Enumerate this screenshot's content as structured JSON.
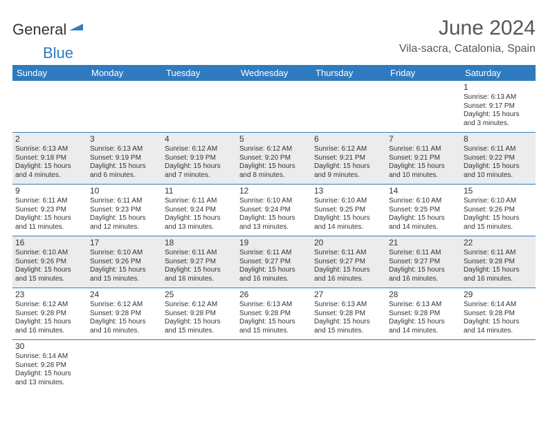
{
  "brand": {
    "part1": "General",
    "part2": "Blue"
  },
  "title": "June 2024",
  "location": "Vila-sacra, Catalonia, Spain",
  "colors": {
    "header_bg": "#2f7bbf",
    "header_fg": "#ffffff",
    "shade_bg": "#ececec",
    "rule": "#2f7bbf",
    "text": "#333333",
    "title_color": "#555555"
  },
  "day_headers": [
    "Sunday",
    "Monday",
    "Tuesday",
    "Wednesday",
    "Thursday",
    "Friday",
    "Saturday"
  ],
  "weeks": [
    [
      null,
      null,
      null,
      null,
      null,
      null,
      {
        "n": "1",
        "sr": "Sunrise: 6:13 AM",
        "ss": "Sunset: 9:17 PM",
        "d1": "Daylight: 15 hours",
        "d2": "and 3 minutes."
      }
    ],
    [
      {
        "n": "2",
        "sr": "Sunrise: 6:13 AM",
        "ss": "Sunset: 9:18 PM",
        "d1": "Daylight: 15 hours",
        "d2": "and 4 minutes."
      },
      {
        "n": "3",
        "sr": "Sunrise: 6:13 AM",
        "ss": "Sunset: 9:19 PM",
        "d1": "Daylight: 15 hours",
        "d2": "and 6 minutes."
      },
      {
        "n": "4",
        "sr": "Sunrise: 6:12 AM",
        "ss": "Sunset: 9:19 PM",
        "d1": "Daylight: 15 hours",
        "d2": "and 7 minutes."
      },
      {
        "n": "5",
        "sr": "Sunrise: 6:12 AM",
        "ss": "Sunset: 9:20 PM",
        "d1": "Daylight: 15 hours",
        "d2": "and 8 minutes."
      },
      {
        "n": "6",
        "sr": "Sunrise: 6:12 AM",
        "ss": "Sunset: 9:21 PM",
        "d1": "Daylight: 15 hours",
        "d2": "and 9 minutes."
      },
      {
        "n": "7",
        "sr": "Sunrise: 6:11 AM",
        "ss": "Sunset: 9:21 PM",
        "d1": "Daylight: 15 hours",
        "d2": "and 10 minutes."
      },
      {
        "n": "8",
        "sr": "Sunrise: 6:11 AM",
        "ss": "Sunset: 9:22 PM",
        "d1": "Daylight: 15 hours",
        "d2": "and 10 minutes."
      }
    ],
    [
      {
        "n": "9",
        "sr": "Sunrise: 6:11 AM",
        "ss": "Sunset: 9:23 PM",
        "d1": "Daylight: 15 hours",
        "d2": "and 11 minutes."
      },
      {
        "n": "10",
        "sr": "Sunrise: 6:11 AM",
        "ss": "Sunset: 9:23 PM",
        "d1": "Daylight: 15 hours",
        "d2": "and 12 minutes."
      },
      {
        "n": "11",
        "sr": "Sunrise: 6:11 AM",
        "ss": "Sunset: 9:24 PM",
        "d1": "Daylight: 15 hours",
        "d2": "and 13 minutes."
      },
      {
        "n": "12",
        "sr": "Sunrise: 6:10 AM",
        "ss": "Sunset: 9:24 PM",
        "d1": "Daylight: 15 hours",
        "d2": "and 13 minutes."
      },
      {
        "n": "13",
        "sr": "Sunrise: 6:10 AM",
        "ss": "Sunset: 9:25 PM",
        "d1": "Daylight: 15 hours",
        "d2": "and 14 minutes."
      },
      {
        "n": "14",
        "sr": "Sunrise: 6:10 AM",
        "ss": "Sunset: 9:25 PM",
        "d1": "Daylight: 15 hours",
        "d2": "and 14 minutes."
      },
      {
        "n": "15",
        "sr": "Sunrise: 6:10 AM",
        "ss": "Sunset: 9:26 PM",
        "d1": "Daylight: 15 hours",
        "d2": "and 15 minutes."
      }
    ],
    [
      {
        "n": "16",
        "sr": "Sunrise: 6:10 AM",
        "ss": "Sunset: 9:26 PM",
        "d1": "Daylight: 15 hours",
        "d2": "and 15 minutes."
      },
      {
        "n": "17",
        "sr": "Sunrise: 6:10 AM",
        "ss": "Sunset: 9:26 PM",
        "d1": "Daylight: 15 hours",
        "d2": "and 15 minutes."
      },
      {
        "n": "18",
        "sr": "Sunrise: 6:11 AM",
        "ss": "Sunset: 9:27 PM",
        "d1": "Daylight: 15 hours",
        "d2": "and 16 minutes."
      },
      {
        "n": "19",
        "sr": "Sunrise: 6:11 AM",
        "ss": "Sunset: 9:27 PM",
        "d1": "Daylight: 15 hours",
        "d2": "and 16 minutes."
      },
      {
        "n": "20",
        "sr": "Sunrise: 6:11 AM",
        "ss": "Sunset: 9:27 PM",
        "d1": "Daylight: 15 hours",
        "d2": "and 16 minutes."
      },
      {
        "n": "21",
        "sr": "Sunrise: 6:11 AM",
        "ss": "Sunset: 9:27 PM",
        "d1": "Daylight: 15 hours",
        "d2": "and 16 minutes."
      },
      {
        "n": "22",
        "sr": "Sunrise: 6:11 AM",
        "ss": "Sunset: 9:28 PM",
        "d1": "Daylight: 15 hours",
        "d2": "and 16 minutes."
      }
    ],
    [
      {
        "n": "23",
        "sr": "Sunrise: 6:12 AM",
        "ss": "Sunset: 9:28 PM",
        "d1": "Daylight: 15 hours",
        "d2": "and 16 minutes."
      },
      {
        "n": "24",
        "sr": "Sunrise: 6:12 AM",
        "ss": "Sunset: 9:28 PM",
        "d1": "Daylight: 15 hours",
        "d2": "and 16 minutes."
      },
      {
        "n": "25",
        "sr": "Sunrise: 6:12 AM",
        "ss": "Sunset: 9:28 PM",
        "d1": "Daylight: 15 hours",
        "d2": "and 15 minutes."
      },
      {
        "n": "26",
        "sr": "Sunrise: 6:13 AM",
        "ss": "Sunset: 9:28 PM",
        "d1": "Daylight: 15 hours",
        "d2": "and 15 minutes."
      },
      {
        "n": "27",
        "sr": "Sunrise: 6:13 AM",
        "ss": "Sunset: 9:28 PM",
        "d1": "Daylight: 15 hours",
        "d2": "and 15 minutes."
      },
      {
        "n": "28",
        "sr": "Sunrise: 6:13 AM",
        "ss": "Sunset: 9:28 PM",
        "d1": "Daylight: 15 hours",
        "d2": "and 14 minutes."
      },
      {
        "n": "29",
        "sr": "Sunrise: 6:14 AM",
        "ss": "Sunset: 9:28 PM",
        "d1": "Daylight: 15 hours",
        "d2": "and 14 minutes."
      }
    ],
    [
      {
        "n": "30",
        "sr": "Sunrise: 6:14 AM",
        "ss": "Sunset: 9:28 PM",
        "d1": "Daylight: 15 hours",
        "d2": "and 13 minutes."
      },
      null,
      null,
      null,
      null,
      null,
      null
    ]
  ],
  "shaded_rows": [
    1,
    3
  ]
}
